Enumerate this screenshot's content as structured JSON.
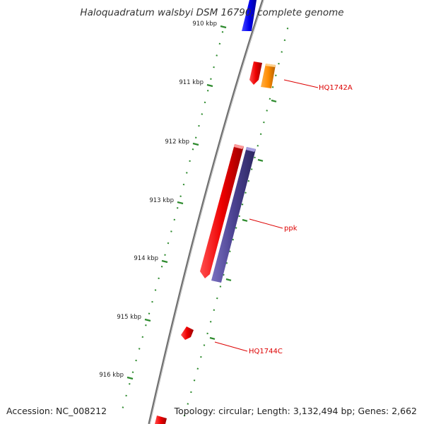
{
  "title": "Haloquadratum walsbyi DSM 16790, complete genome",
  "footer": {
    "accession": "Accession: NC_008212",
    "summary": "Topology: circular; Length: 3,132,494 bp; Genes: 2,662"
  },
  "ruler_labels": [
    "910 kbp",
    "911 kbp",
    "912 kbp",
    "913 kbp",
    "914 kbp",
    "915 kbp",
    "916 kbp"
  ],
  "gene_labels": {
    "hq1742a": "HQ1742A",
    "ppk": "ppk",
    "hq1744c": "HQ1744C"
  },
  "colors": {
    "backbone": "#8c8c8c",
    "tick": "#2e8b2e",
    "label": "#dd0000",
    "gene_red": "#ee0000",
    "gene_blue": "#0000ee",
    "gene_orange": "#ff8c00",
    "gene_purple": "#4b4291"
  }
}
